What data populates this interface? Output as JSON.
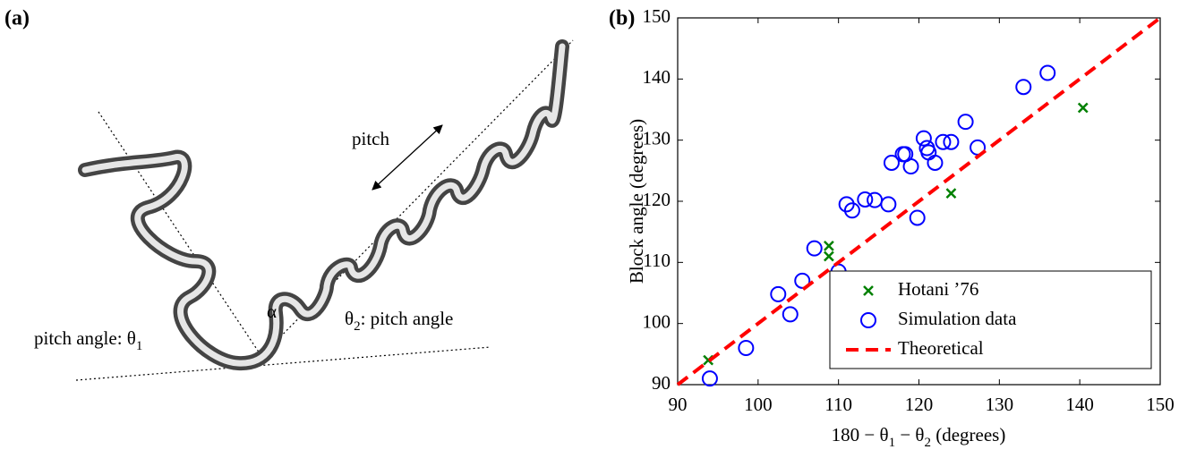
{
  "panel_a": {
    "label": "(a)",
    "pitch": "pitch",
    "alpha": "α",
    "left_angle": [
      "pitch angle: θ",
      "1"
    ],
    "right_angle": [
      "θ",
      "2",
      ": pitch angle"
    ]
  },
  "chart_data": {
    "type": "scatter",
    "label": "(b)",
    "x_label": [
      "180 − θ",
      "1",
      " − θ",
      "2",
      " (degrees)"
    ],
    "y_label": "Block angle (degrees)",
    "xlim": [
      90,
      150
    ],
    "ylim": [
      90,
      150
    ],
    "xticks": [
      90,
      100,
      110,
      120,
      130,
      140,
      150
    ],
    "yticks": [
      90,
      100,
      110,
      120,
      130,
      140,
      150
    ],
    "legend": "lower right",
    "series": [
      {
        "name": "Hotani ’76",
        "color": "#008000",
        "marker": "x",
        "x": [
          93.8,
          108.8,
          108.8,
          124,
          140.4
        ],
        "values": [
          94,
          112.7,
          111,
          121.3,
          135.3
        ]
      },
      {
        "name": "Simulation data",
        "color": "#0000ff",
        "marker": "o",
        "x": [
          94,
          98.5,
          102.5,
          104,
          105.5,
          107,
          110,
          111,
          111.7,
          113.3,
          114.5,
          116.2,
          116.6,
          118,
          118.3,
          119,
          119.8,
          120.6,
          121,
          121.2,
          122,
          123,
          124,
          125.8,
          127.3,
          133,
          136
        ],
        "values": [
          91,
          96,
          104.8,
          101.5,
          107,
          112.3,
          108.5,
          119.5,
          118.5,
          120.3,
          120.2,
          119.5,
          126.3,
          127.7,
          127.7,
          125.7,
          117.3,
          130.3,
          128.7,
          128,
          126.3,
          129.7,
          129.7,
          133,
          128.8,
          138.7,
          141
        ]
      },
      {
        "name": "Theoretical",
        "color": "#ff0000",
        "marker": "dashed-line",
        "x": [
          90,
          150
        ],
        "values": [
          90,
          150
        ]
      }
    ]
  }
}
